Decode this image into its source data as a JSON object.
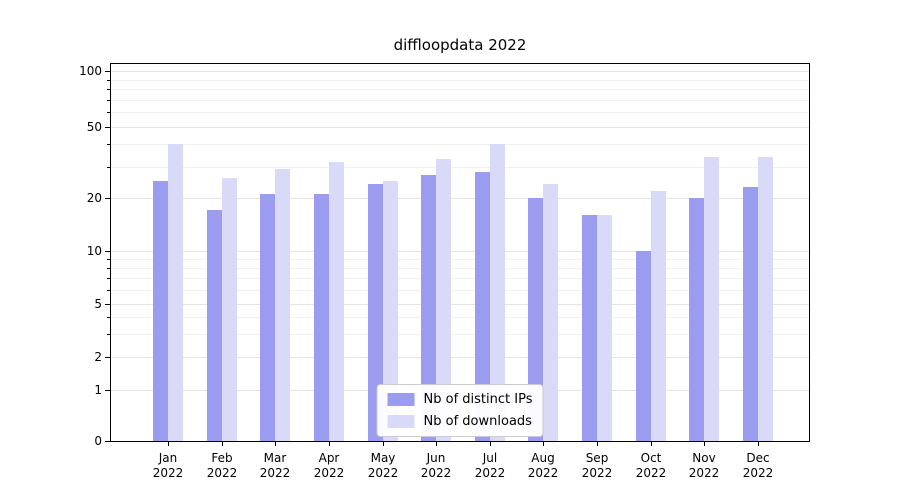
{
  "title": "diffloopdata 2022",
  "chart_data": {
    "type": "bar",
    "title": "diffloopdata 2022",
    "categories": [
      "Jan",
      "Feb",
      "Mar",
      "Apr",
      "May",
      "Jun",
      "Jul",
      "Aug",
      "Sep",
      "Oct",
      "Nov",
      "Dec"
    ],
    "year": "2022",
    "series": [
      {
        "name": "Nb of distinct IPs",
        "color": "#9b9bf0",
        "values": [
          25,
          17,
          21,
          21,
          24,
          27,
          28,
          20,
          16,
          10,
          20,
          23
        ]
      },
      {
        "name": "Nb of downloads",
        "color": "#d9d9f8",
        "values": [
          40,
          26,
          29,
          32,
          25,
          33,
          40,
          24,
          16,
          22,
          34,
          34
        ]
      }
    ],
    "yscale": "symlog",
    "yticks": [
      0,
      1,
      2,
      5,
      10,
      20,
      50,
      100
    ],
    "yminorticks": [
      3,
      4,
      6,
      7,
      8,
      9,
      30,
      40,
      60,
      70,
      80,
      90
    ],
    "ylim": [
      0,
      100
    ],
    "xlabel": "",
    "ylabel": "",
    "grid": true,
    "legend_position": "lower center"
  },
  "colors": {
    "background": "#ffffff",
    "axis": "#000000",
    "grid_major": "#e4e4e4",
    "grid_minor": "#f1f1f1"
  }
}
